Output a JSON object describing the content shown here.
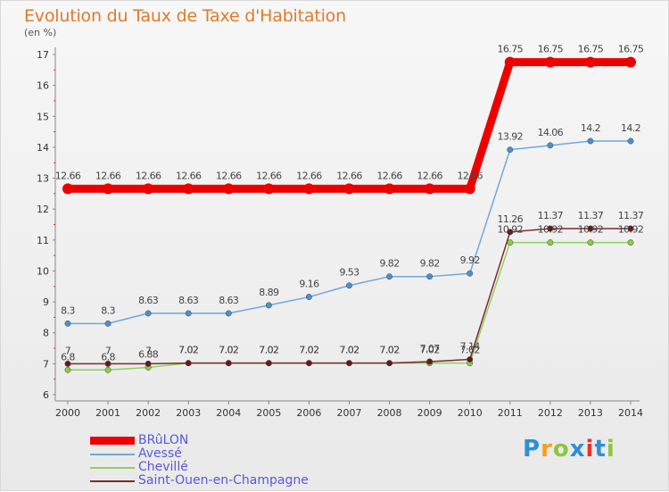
{
  "header": {
    "title": "Evolution du Taux de Taxe d'Habitation",
    "subtitle": "(en %)"
  },
  "logo": {
    "text": "Proxiti",
    "letters": [
      {
        "ch": "P",
        "color": "#2e8fd6"
      },
      {
        "ch": "r",
        "color": "#f0a020"
      },
      {
        "ch": "o",
        "color": "#8cc63f"
      },
      {
        "ch": "x",
        "color": "#2e8fd6"
      },
      {
        "ch": "i",
        "color": "#e8332a"
      },
      {
        "ch": "t",
        "color": "#2e8fd6"
      },
      {
        "ch": "i",
        "color": "#8cc63f"
      }
    ]
  },
  "chart_data": {
    "type": "line",
    "title": "Evolution du Taux de Taxe d'Habitation",
    "ylabel": "(en %)",
    "xlabel": "",
    "x": [
      "2000",
      "2001",
      "2002",
      "2003",
      "2004",
      "2005",
      "2006",
      "2007",
      "2008",
      "2009",
      "2010",
      "2011",
      "2012",
      "2013",
      "2014"
    ],
    "ylim": [
      6,
      17
    ],
    "yticks": [
      6,
      7,
      8,
      9,
      10,
      11,
      12,
      13,
      14,
      15,
      16,
      17
    ],
    "grid": false,
    "legend_position": "bottom-left",
    "series": [
      {
        "name": "BRûLON",
        "color": "#ee0000",
        "width": 9,
        "marker_color": "#ee0000",
        "values": [
          12.66,
          12.66,
          12.66,
          12.66,
          12.66,
          12.66,
          12.66,
          12.66,
          12.66,
          12.66,
          12.66,
          16.75,
          16.75,
          16.75,
          16.75
        ],
        "labels": [
          "12.66",
          "12.66",
          "12.66",
          "12.66",
          "12.66",
          "12.66",
          "12.66",
          "12.66",
          "12.66",
          "12.66",
          "12.66",
          "16.75",
          "16.75",
          "16.75",
          "16.75"
        ]
      },
      {
        "name": "Avessé",
        "color": "#6fa8dc",
        "width": 1.5,
        "marker_color": "#4a90d0",
        "values": [
          8.3,
          8.3,
          8.63,
          8.63,
          8.63,
          8.89,
          9.16,
          9.53,
          9.82,
          9.82,
          9.92,
          13.92,
          14.06,
          14.2,
          14.2
        ],
        "labels": [
          "8.3",
          "8.3",
          "8.63",
          "8.63",
          "8.63",
          "8.89",
          "9.16",
          "9.53",
          "9.82",
          "9.82",
          "9.92",
          "13.92",
          "14.06",
          "14.2",
          "14.2"
        ]
      },
      {
        "name": "Chevillé",
        "color": "#90d060",
        "width": 1.5,
        "marker_color": "#88cc44",
        "values": [
          6.8,
          6.8,
          6.88,
          7.02,
          7.02,
          7.02,
          7.02,
          7.02,
          7.02,
          7.02,
          7.02,
          10.92,
          10.92,
          10.92,
          10.92
        ],
        "labels": [
          "6.8",
          "6.8",
          "6.88",
          "7.02",
          "7.02",
          "7.02",
          "7.02",
          "7.02",
          "7.02",
          "7.02",
          "7.02",
          "10.92",
          "10.92",
          "10.92",
          "10.92"
        ]
      },
      {
        "name": "Saint-Ouen-en-Champagne",
        "color": "#7a2a2a",
        "width": 1.5,
        "marker_color": "#6a1818",
        "values": [
          7,
          7,
          7,
          7.02,
          7.02,
          7.02,
          7.02,
          7.02,
          7.02,
          7.07,
          7.14,
          11.26,
          11.37,
          11.37,
          11.37
        ],
        "labels": [
          "7",
          "7",
          "7",
          "7.02",
          "7.02",
          "7.02",
          "7.02",
          "7.02",
          "7.02",
          "7.07",
          "7.14",
          "11.26",
          "11.37",
          "11.37",
          "11.37"
        ]
      }
    ]
  }
}
